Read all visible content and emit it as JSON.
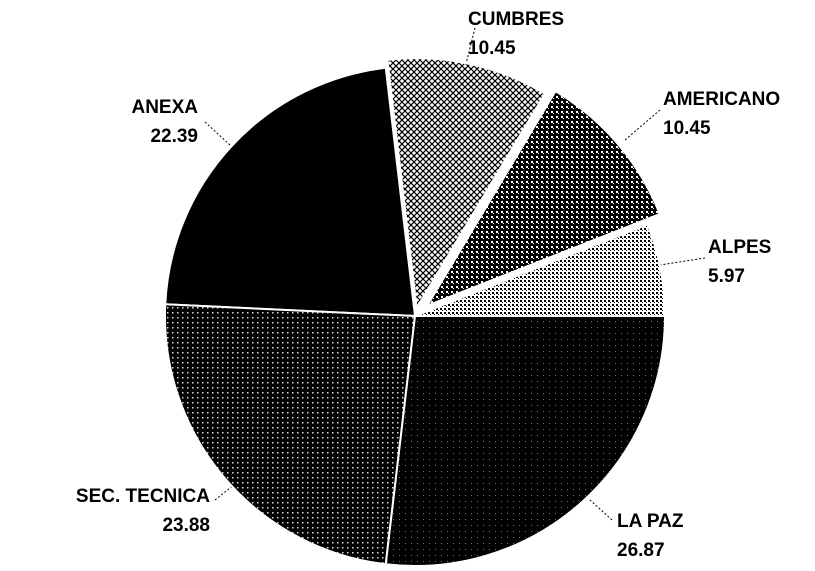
{
  "chart_data": {
    "type": "pie",
    "categories": [
      "ALPES",
      "AMERICANO",
      "CUMBRES",
      "ANEXA",
      "SEC. TECNICA",
      "LA PAZ"
    ],
    "values": [
      5.97,
      10.45,
      10.45,
      22.39,
      23.88,
      26.87
    ],
    "colors": [
      "#e6e6e6",
      "#555555",
      "#d0d0d0",
      "#000000",
      "#333333",
      "#111111"
    ]
  }
}
